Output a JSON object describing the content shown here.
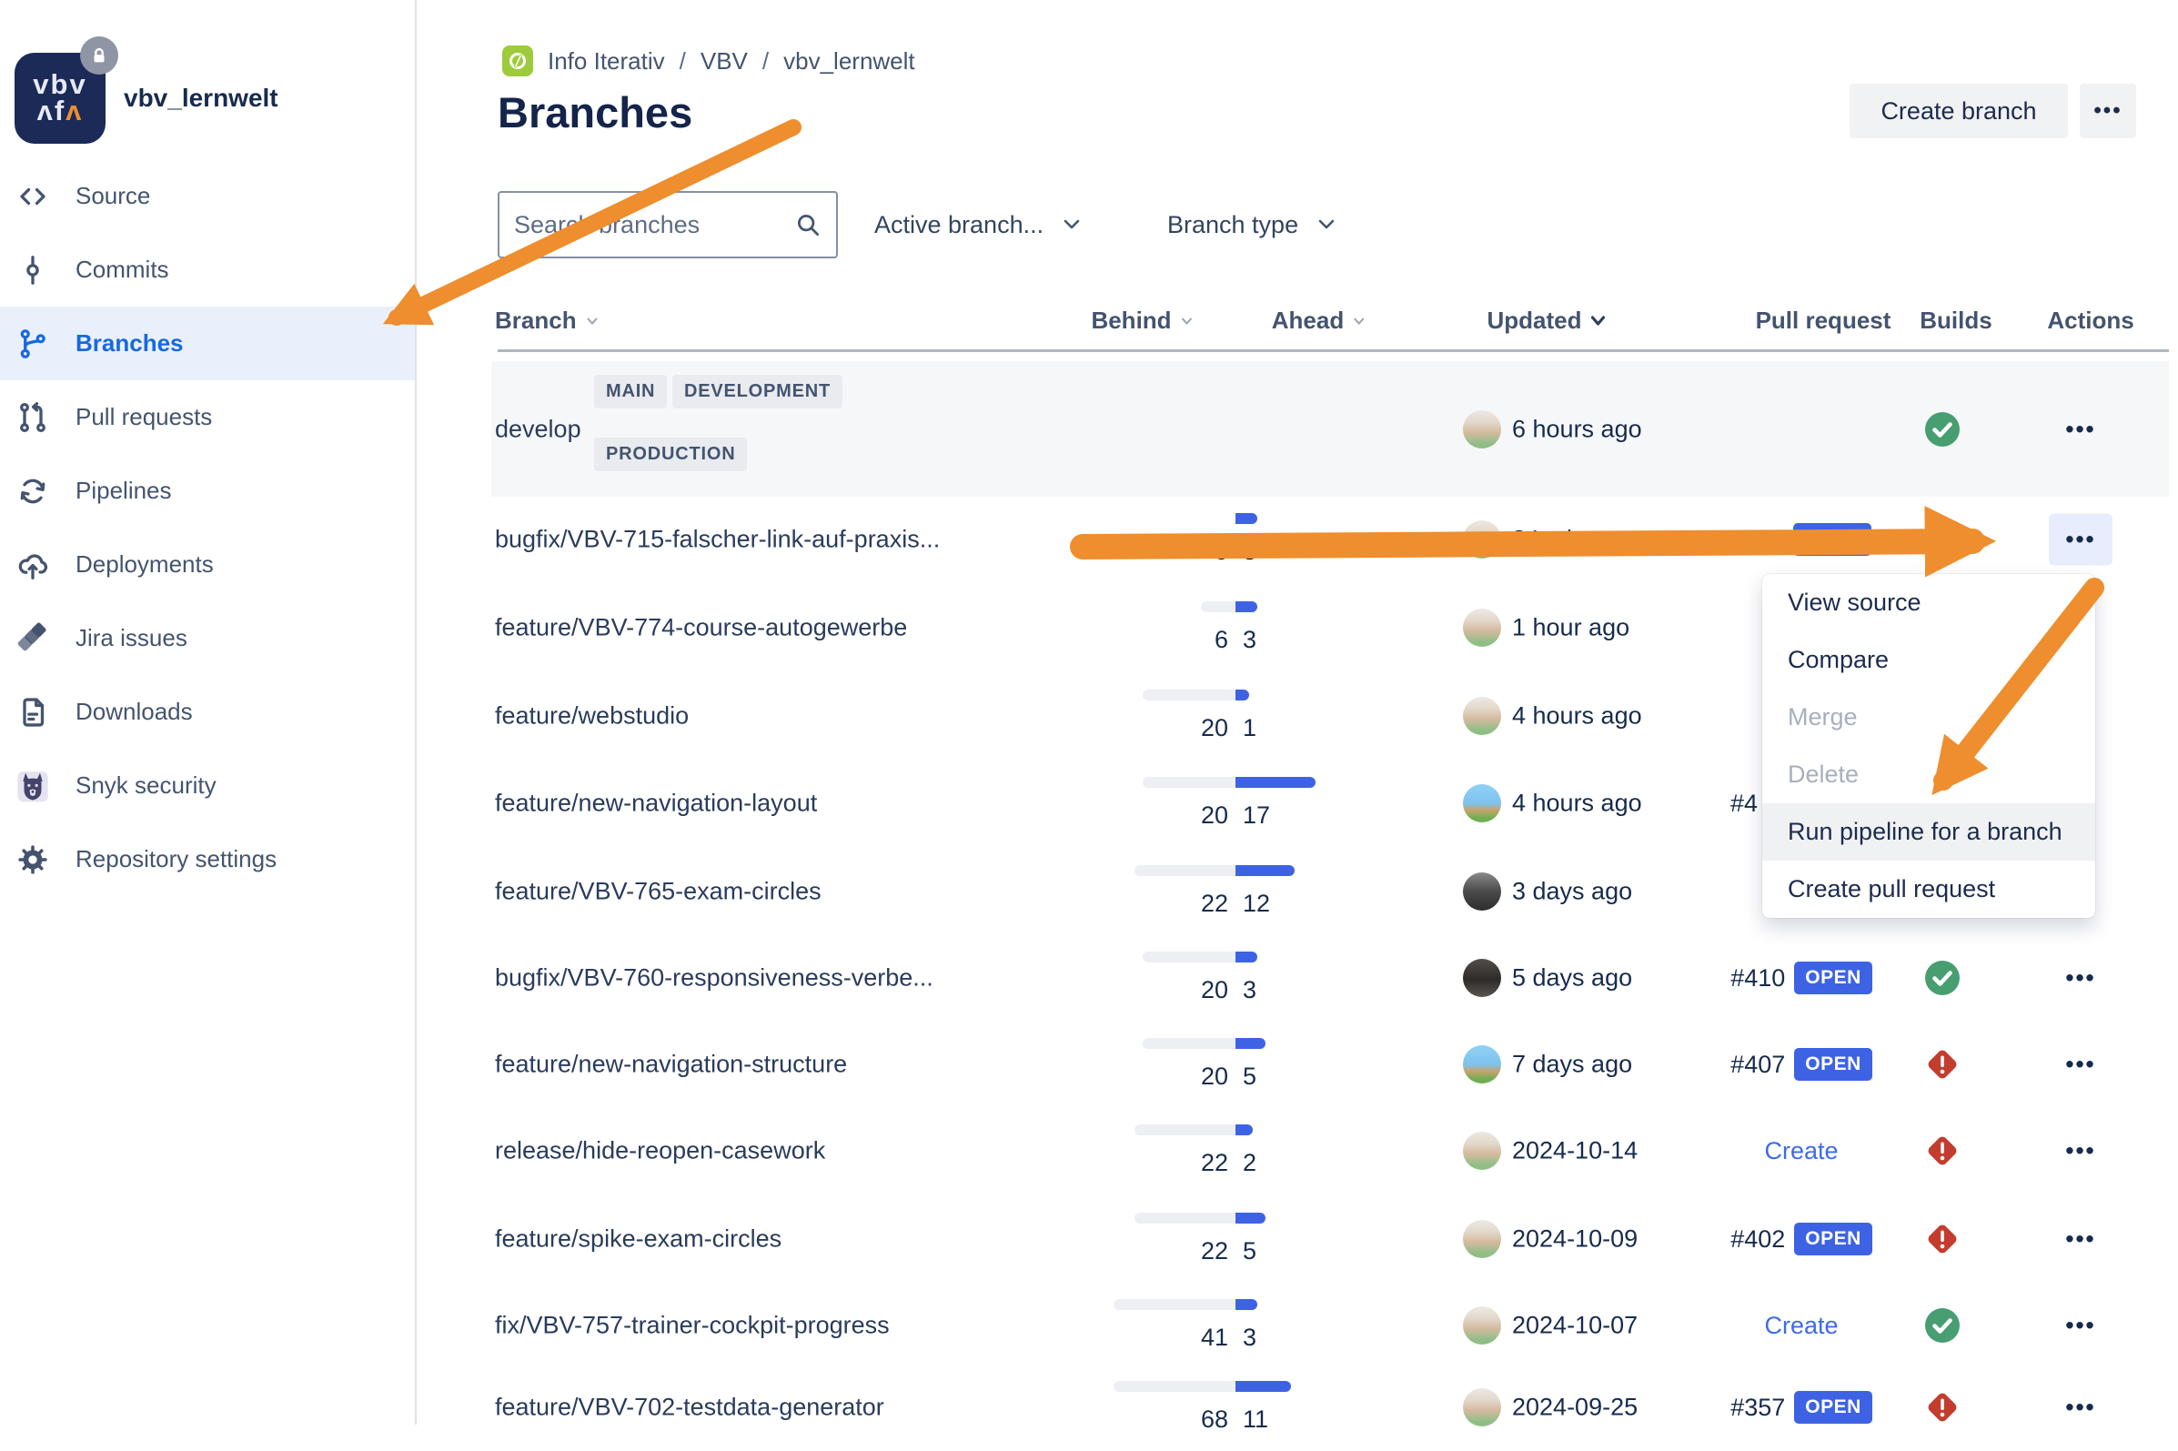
{
  "sidebar": {
    "workspace": "vbv_lernwelt",
    "logo_line1": "vbv",
    "logo_line2_left": "ʌf",
    "logo_line2_accent": "ʌ",
    "items": [
      {
        "label": "Source",
        "icon": "code-icon",
        "active": false
      },
      {
        "label": "Commits",
        "icon": "commit-icon",
        "active": false
      },
      {
        "label": "Branches",
        "icon": "branch-icon",
        "active": true
      },
      {
        "label": "Pull requests",
        "icon": "pull-request-icon",
        "active": false
      },
      {
        "label": "Pipelines",
        "icon": "pipelines-icon",
        "active": false
      },
      {
        "label": "Deployments",
        "icon": "deployments-icon",
        "active": false
      },
      {
        "label": "Jira issues",
        "icon": "jira-icon",
        "active": false
      },
      {
        "label": "Downloads",
        "icon": "downloads-icon",
        "active": false
      },
      {
        "label": "Snyk security",
        "icon": "snyk-dog-icon",
        "active": false
      },
      {
        "label": "Repository settings",
        "icon": "gear-icon",
        "active": false
      }
    ]
  },
  "breadcrumb": {
    "project": "Info Iterativ",
    "separator": "/",
    "repo": "VBV",
    "page": "vbv_lernwelt"
  },
  "header": {
    "title": "Branches",
    "create_branch_label": "Create branch",
    "more_label": "•••"
  },
  "filters": {
    "search_placeholder": "Search branches",
    "active_branches_label": "Active branch...",
    "branch_type_label": "Branch type"
  },
  "table": {
    "headers": {
      "branch": "Branch",
      "behind": "Behind",
      "ahead": "Ahead",
      "updated": "Updated",
      "pull_request": "Pull request",
      "builds": "Builds",
      "actions": "Actions",
      "sorted_column": "updated"
    },
    "develop": {
      "name": "develop",
      "badges": [
        "MAIN",
        "DEVELOPMENT",
        "PRODUCTION"
      ],
      "updated": "6 hours ago",
      "avatar": "bearded-man-photo",
      "build": "success",
      "actions_label": "•••"
    },
    "rows": [
      {
        "name": "bugfix/VBV-715-falscher-link-auf-praxis...",
        "behind": 0,
        "ahead": 3,
        "updated": "24 minutes ago",
        "avatar": "bearded-man-photo",
        "pr": {
          "number": "#411",
          "status": "OPEN"
        },
        "build": "in-progress",
        "actions_open": true
      },
      {
        "name": "feature/VBV-774-course-autogewerbe",
        "behind": 6,
        "ahead": 3,
        "updated": "1 hour ago",
        "avatar": "bearded-man-photo",
        "pr": null,
        "build": null,
        "actions_open": false
      },
      {
        "name": "feature/webstudio",
        "behind": 20,
        "ahead": 1,
        "updated": "4 hours ago",
        "avatar": "bearded-man-photo",
        "pr": null,
        "build": null,
        "actions_open": false
      },
      {
        "name": "feature/new-navigation-layout",
        "behind": 20,
        "ahead": 17,
        "updated": "4 hours ago",
        "avatar": "pixel-art-character",
        "pr": {
          "number": "#4",
          "partial": true
        },
        "build": null,
        "actions_open": false
      },
      {
        "name": "feature/VBV-765-exam-circles",
        "behind": 22,
        "ahead": 12,
        "updated": "3 days ago",
        "avatar": "bw-photo",
        "pr": null,
        "build": null,
        "actions_open": false
      },
      {
        "name": "bugfix/VBV-760-responsiveness-verbe...",
        "behind": 20,
        "ahead": 3,
        "updated": "5 days ago",
        "avatar": "dark-photo",
        "pr": {
          "number": "#410",
          "status": "OPEN"
        },
        "build": "success",
        "actions_open": false
      },
      {
        "name": "feature/new-navigation-structure",
        "behind": 20,
        "ahead": 5,
        "updated": "7 days ago",
        "avatar": "pixel-art-character",
        "pr": {
          "number": "#407",
          "status": "OPEN"
        },
        "build": "failed",
        "actions_open": false
      },
      {
        "name": "release/hide-reopen-casework",
        "behind": 22,
        "ahead": 2,
        "updated": "2024-10-14",
        "avatar": "bearded-man-photo",
        "pr": {
          "link": "Create"
        },
        "build": "failed",
        "actions_open": false
      },
      {
        "name": "feature/spike-exam-circles",
        "behind": 22,
        "ahead": 5,
        "updated": "2024-10-09",
        "avatar": "bearded-man-photo",
        "pr": {
          "number": "#402",
          "status": "OPEN"
        },
        "build": "failed",
        "actions_open": false
      },
      {
        "name": "fix/VBV-757-trainer-cockpit-progress",
        "behind": 41,
        "ahead": 3,
        "updated": "2024-10-07",
        "avatar": "bearded-man-photo",
        "pr": {
          "link": "Create"
        },
        "build": "success",
        "actions_open": false
      },
      {
        "name": "feature/VBV-702-testdata-generator",
        "behind": 68,
        "ahead": 11,
        "updated": "2024-09-25",
        "avatar": "bearded-man-photo",
        "pr": {
          "number": "#357",
          "status": "OPEN"
        },
        "build": "failed",
        "actions_open": false
      }
    ],
    "actions_label": "•••"
  },
  "context_menu": {
    "items": [
      {
        "label": "View source",
        "enabled": true,
        "highlighted": false
      },
      {
        "label": "Compare",
        "enabled": true,
        "highlighted": false
      },
      {
        "label": "Merge",
        "enabled": false,
        "highlighted": false
      },
      {
        "label": "Delete",
        "enabled": false,
        "highlighted": false
      },
      {
        "label": "Run pipeline for a branch",
        "enabled": true,
        "highlighted": true
      },
      {
        "label": "Create pull request",
        "enabled": true,
        "highlighted": false
      }
    ]
  },
  "colors": {
    "accent_blue": "#3D63E4",
    "active_nav_blue": "#1769E0",
    "success_green": "#479E70",
    "failed_red": "#C33D2E",
    "in_progress_blue": "#3E6BEE",
    "arrow_orange": "#EE8E2E",
    "breadcrumb_icon_green": "#9ECB3B",
    "logo_navy": "#1B2A57"
  }
}
